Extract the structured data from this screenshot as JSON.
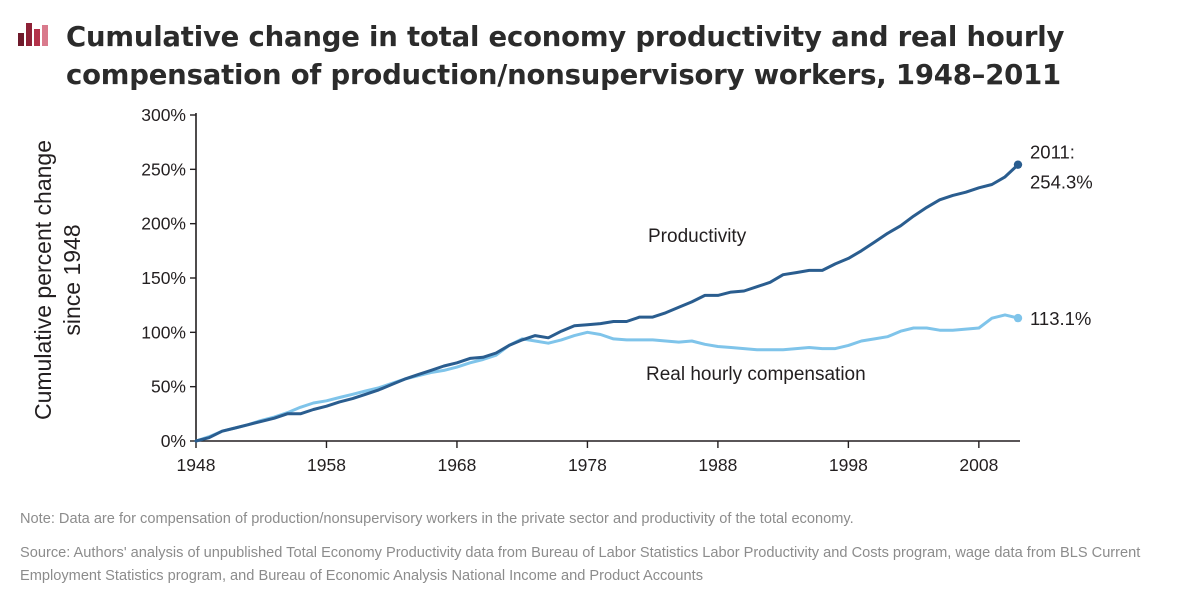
{
  "header": {
    "title": "Cumulative change in total economy productivity and real hourly compensation of production/nonsupervisory workers, 1948–2011",
    "brand_colors": [
      "#6e1a2b",
      "#b4324a",
      "#d97a8c"
    ]
  },
  "footer": {
    "note": "Note: Data are for compensation of production/nonsupervisory workers in the private sector and productivity of the total economy.",
    "source": "Source: Authors' analysis of unpublished Total Economy Productivity data from Bureau of Labor Statistics Labor Productivity and Costs program, wage data from BLS Current Employment Statistics program, and Bureau of Economic Analysis National Income and Product Accounts"
  },
  "chart_data": {
    "type": "line",
    "title": "Cumulative change in total economy productivity and real hourly compensation of production/nonsupervisory workers, 1948–2011",
    "xlabel": "",
    "ylabel": "Cumulative percent change since 1948",
    "ylabel_lines": [
      "Cumulative percent change",
      "since 1948"
    ],
    "xlim": [
      1948,
      2011
    ],
    "ylim": [
      0,
      300
    ],
    "x_ticks": [
      1948,
      1958,
      1968,
      1978,
      1988,
      1998,
      2008
    ],
    "y_ticks": [
      0,
      50,
      100,
      150,
      200,
      250,
      300
    ],
    "y_tick_labels": [
      "0%",
      "50%",
      "100%",
      "150%",
      "200%",
      "250%",
      "300%"
    ],
    "grid": false,
    "legend": "inline labels",
    "x": [
      1948,
      1949,
      1950,
      1951,
      1952,
      1953,
      1954,
      1955,
      1956,
      1957,
      1958,
      1959,
      1960,
      1961,
      1962,
      1963,
      1964,
      1965,
      1966,
      1967,
      1968,
      1969,
      1970,
      1971,
      1972,
      1973,
      1974,
      1975,
      1976,
      1977,
      1978,
      1979,
      1980,
      1981,
      1982,
      1983,
      1984,
      1985,
      1986,
      1987,
      1988,
      1989,
      1990,
      1991,
      1992,
      1993,
      1994,
      1995,
      1996,
      1997,
      1998,
      1999,
      2000,
      2001,
      2002,
      2003,
      2004,
      2005,
      2006,
      2007,
      2008,
      2009,
      2010,
      2011
    ],
    "series": [
      {
        "name": "Productivity",
        "color": "#2a5d8f",
        "values": [
          0,
          3,
          9,
          12,
          15,
          18,
          21,
          25,
          25,
          29,
          32,
          36,
          39,
          43,
          47,
          52,
          57,
          61,
          65,
          69,
          72,
          76,
          77,
          81,
          88,
          93,
          97,
          95,
          101,
          106,
          107,
          108,
          110,
          110,
          114,
          114,
          118,
          123,
          128,
          134,
          134,
          137,
          138,
          142,
          146,
          153,
          155,
          157,
          157,
          163,
          168,
          175,
          183,
          191,
          198,
          207,
          215,
          222,
          226,
          229,
          233,
          236,
          243,
          254.3
        ]
      },
      {
        "name": "Real hourly compensation",
        "color": "#7fc4ea",
        "values": [
          0,
          4,
          9,
          12,
          15,
          19,
          22,
          26,
          31,
          35,
          37,
          40,
          43,
          46,
          49,
          53,
          57,
          60,
          63,
          65,
          68,
          72,
          75,
          79,
          88,
          94,
          92,
          90,
          93,
          97,
          100,
          98,
          94,
          93,
          93,
          93,
          92,
          91,
          92,
          89,
          87,
          86,
          85,
          84,
          84,
          84,
          85,
          86,
          85,
          85,
          88,
          92,
          94,
          96,
          101,
          104,
          104,
          102,
          102,
          103,
          104,
          113,
          116,
          113.1
        ]
      }
    ],
    "annotations": [
      {
        "series": "Productivity",
        "line1": "2011:",
        "line2": "254.3%"
      },
      {
        "series": "Real hourly compensation",
        "text": "113.1%"
      }
    ]
  }
}
